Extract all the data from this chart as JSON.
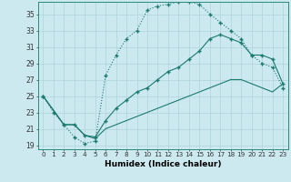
{
  "xlabel": "Humidex (Indice chaleur)",
  "bg_color": "#cce9f0",
  "grid_color": "#aed4dc",
  "line_color": "#1a7a6e",
  "xlim": [
    -0.5,
    23.5
  ],
  "ylim": [
    18.5,
    36.5
  ],
  "yticks": [
    19,
    21,
    23,
    25,
    27,
    29,
    31,
    33,
    35
  ],
  "xticks": [
    0,
    1,
    2,
    3,
    4,
    5,
    6,
    7,
    8,
    9,
    10,
    11,
    12,
    13,
    14,
    15,
    16,
    17,
    18,
    19,
    20,
    21,
    22,
    23
  ],
  "line1_x": [
    0,
    1,
    2,
    3,
    4,
    5,
    6,
    7,
    8,
    9,
    10,
    11,
    12,
    13,
    14,
    15,
    16,
    17,
    18,
    19,
    20,
    21,
    22,
    23
  ],
  "line1_y": [
    25,
    23,
    21.5,
    20,
    19.2,
    19.5,
    27.5,
    30,
    32,
    33,
    35.5,
    36,
    36.2,
    36.5,
    36.5,
    36.2,
    35,
    34,
    33,
    32,
    30,
    29,
    28.5,
    26
  ],
  "line2_x": [
    0,
    2,
    3,
    4,
    5,
    6,
    7,
    8,
    9,
    10,
    11,
    12,
    13,
    14,
    15,
    16,
    17,
    18,
    19,
    20,
    21,
    22,
    23
  ],
  "line2_y": [
    25,
    21.5,
    21.5,
    20.2,
    20,
    22,
    23.5,
    24.5,
    25.5,
    26,
    27,
    28,
    28.5,
    29.5,
    30.5,
    32,
    32.5,
    32,
    31.5,
    30,
    30,
    29.5,
    26.5
  ],
  "line3_x": [
    0,
    2,
    3,
    4,
    5,
    6,
    7,
    8,
    9,
    10,
    11,
    12,
    13,
    14,
    15,
    16,
    17,
    18,
    19,
    20,
    21,
    22,
    23
  ],
  "line3_y": [
    25,
    21.5,
    21.5,
    20.2,
    19.8,
    21,
    21.5,
    22,
    22.5,
    23,
    23.5,
    24,
    24.5,
    25,
    25.5,
    26,
    26.5,
    27,
    27,
    26.5,
    26,
    25.5,
    26.5
  ]
}
